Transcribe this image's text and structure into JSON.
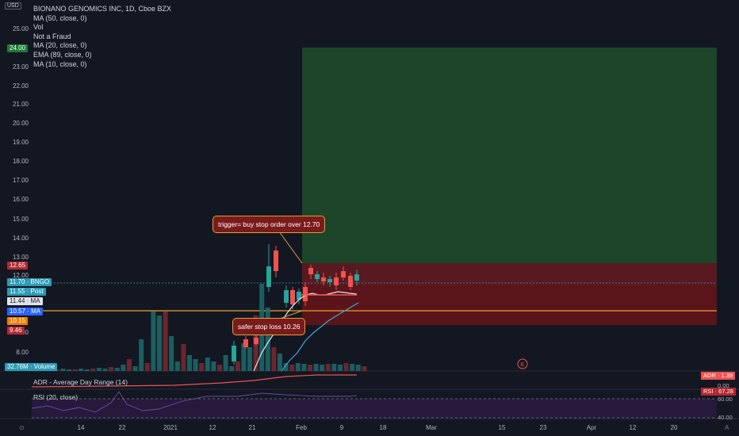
{
  "header": {
    "currency": "USD"
  },
  "legend": [
    "BIONANO GENOMICS INC, 1D, Cboe BZX",
    "MA (50, close, 0)",
    "Vol",
    "Not a Fraud",
    "MA (20, close, 0)",
    "EMA (89, close, 0)",
    "MA (10, close, 0)"
  ],
  "price_axis": [
    "25.00",
    "23.00",
    "22.00",
    "21.00",
    "20.00",
    "19.00",
    "18.00",
    "17.00",
    "16.00",
    "15.00",
    "14.00",
    "13.00",
    "12.00",
    "9.00",
    "8.00"
  ],
  "tags": {
    "target": {
      "label": "24.00",
      "color": "#1b7a35"
    },
    "p1265": {
      "label": "12.65",
      "color": "#b22833"
    },
    "bngo": {
      "label": "11.70",
      "name": "BNGO",
      "color": "#2a9bb3"
    },
    "post": {
      "label": "11.55",
      "name": "Post",
      "color": "#2a9bb3"
    },
    "ma1": {
      "label": "11.44",
      "name": "MA",
      "color": "#e1e4ea"
    },
    "ma2": {
      "label": "10.57",
      "name": "MA",
      "color": "#2962ff"
    },
    "p1015": {
      "label": "10.15",
      "color": "#f57c00"
    },
    "p946": {
      "label": "9.46",
      "color": "#b22833"
    },
    "volume": {
      "label": "32.76M",
      "name": "Volume",
      "color": "#2a9bb3"
    }
  },
  "callouts": {
    "trigger": "trigger= buy stop order over 12.70",
    "stop": "safer stop loss 10.26"
  },
  "earnings_marker": "E",
  "x_axis": [
    "14",
    "22",
    "2021",
    "12",
    "21",
    "Feb",
    "9",
    "18",
    "Mar",
    "15",
    "23",
    "Apr",
    "12",
    "20"
  ],
  "adr": {
    "title": "ADR - Average Day Range (14)",
    "tag": "ADR · 1.39",
    "tick": "0.00"
  },
  "rsi": {
    "title": "RSI (20, close)",
    "tag": "RSI · 67.28",
    "ticks": [
      "60.00",
      "40.00"
    ]
  },
  "corner_left": "⊙",
  "corner_right": "A"
}
